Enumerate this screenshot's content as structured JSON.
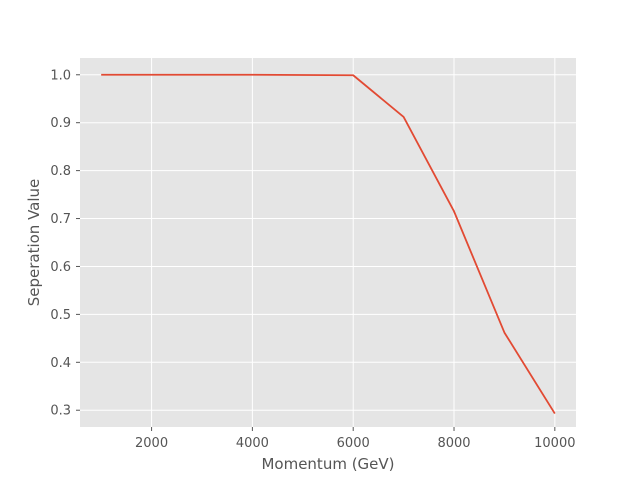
{
  "chart_data": {
    "type": "line",
    "title": "",
    "xlabel": "Momentum (GeV)",
    "ylabel": "Seperation Value",
    "xlim": [
      580,
      10420
    ],
    "ylim": [
      0.265,
      1.035
    ],
    "xticks": [
      2000,
      4000,
      6000,
      8000,
      10000
    ],
    "xtick_labels": [
      "2000",
      "4000",
      "6000",
      "8000",
      "10000"
    ],
    "yticks": [
      0.3,
      0.4,
      0.5,
      0.6,
      0.7,
      0.8,
      0.9,
      1.0
    ],
    "ytick_labels": [
      "0.3",
      "0.4",
      "0.5",
      "0.6",
      "0.7",
      "0.8",
      "0.9",
      "1.0"
    ],
    "grid": true,
    "legend": "none",
    "style": "ggplot",
    "colors": {
      "plot_background": "#e5e5e5",
      "grid": "#ffffff",
      "line": "#e24a33",
      "text": "#555555"
    },
    "series": [
      {
        "x": [
          1000,
          2000,
          3000,
          4000,
          5000,
          6000,
          7000,
          8000,
          9000,
          10000
        ],
        "y": [
          1.0,
          1.0,
          1.0,
          1.0,
          0.9995,
          0.999,
          0.912,
          0.715,
          0.462,
          0.293
        ]
      }
    ]
  }
}
